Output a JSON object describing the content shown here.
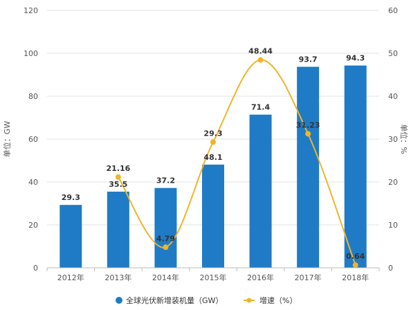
{
  "chart_data": {
    "type": "bar",
    "categories": [
      "2012年",
      "2013年",
      "2014年",
      "2015年",
      "2016年",
      "2017年",
      "2018年"
    ],
    "series": [
      {
        "name": "全球光伏新增装机量（GW）",
        "type": "bar",
        "axis": "left",
        "color": "#1f7bc6",
        "values": [
          29.3,
          35.5,
          37.2,
          48.1,
          71.4,
          93.7,
          94.3
        ],
        "labels": [
          "29.3",
          "35.5",
          "37.2",
          "48.1",
          "71.4",
          "93.7",
          "94.3"
        ]
      },
      {
        "name": "增速（%）",
        "type": "line",
        "axis": "right",
        "color": "#f0b429",
        "values": [
          null,
          21.16,
          4.79,
          29.3,
          48.44,
          31.23,
          0.64
        ],
        "labels": [
          "",
          "21.16",
          "4.79",
          "29.3",
          "48.44",
          "31.23",
          "0.64"
        ]
      }
    ],
    "ylabel_left": "单位：GW",
    "ylabel_right": "单位：%",
    "ylim_left": [
      0,
      120
    ],
    "yticks_left": [
      0,
      20,
      40,
      60,
      80,
      100,
      120
    ],
    "ylim_right": [
      0,
      60
    ],
    "yticks_right": [
      0,
      10,
      20,
      30,
      40,
      50,
      60
    ],
    "grid": true,
    "legend_position": "bottom",
    "line_style": "smooth"
  }
}
